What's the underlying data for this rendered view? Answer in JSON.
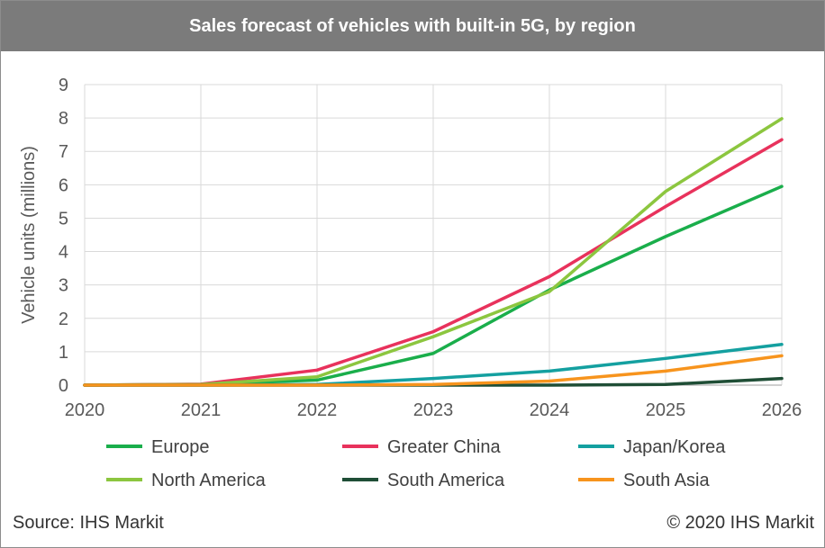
{
  "header": {
    "title": "Sales forecast of vehicles with built-in 5G, by region"
  },
  "footer": {
    "source": "Source: IHS Markit",
    "copyright": "© 2020 IHS Markit"
  },
  "chart_data": {
    "type": "line",
    "title": "Sales forecast of vehicles with built-in 5G, by region",
    "xlabel": "",
    "ylabel": "Vehicle units (millions)",
    "x": [
      2020,
      2021,
      2022,
      2023,
      2024,
      2025,
      2026
    ],
    "ylim": [
      0,
      9
    ],
    "yticks": [
      0,
      1,
      2,
      3,
      4,
      5,
      6,
      7,
      8,
      9
    ],
    "grid": true,
    "legend_position": "bottom",
    "series": [
      {
        "name": "Europe",
        "color": "#1aae4b",
        "values": [
          0,
          0.02,
          0.15,
          0.95,
          2.85,
          4.45,
          5.95
        ]
      },
      {
        "name": "Greater China",
        "color": "#e8325c",
        "values": [
          0,
          0.03,
          0.45,
          1.6,
          3.25,
          5.35,
          7.35
        ]
      },
      {
        "name": "Japan/Korea",
        "color": "#14a0a0",
        "values": [
          0,
          0,
          0.02,
          0.2,
          0.42,
          0.8,
          1.22
        ]
      },
      {
        "name": "North America",
        "color": "#8cc63f",
        "values": [
          0,
          0.02,
          0.25,
          1.45,
          2.8,
          5.8,
          7.98
        ]
      },
      {
        "name": "South America",
        "color": "#1f4e36",
        "values": [
          0,
          0,
          0,
          0,
          0,
          0.02,
          0.2
        ]
      },
      {
        "name": "South Asia",
        "color": "#f7941d",
        "values": [
          0,
          0,
          0,
          0.02,
          0.12,
          0.42,
          0.88
        ]
      }
    ]
  }
}
